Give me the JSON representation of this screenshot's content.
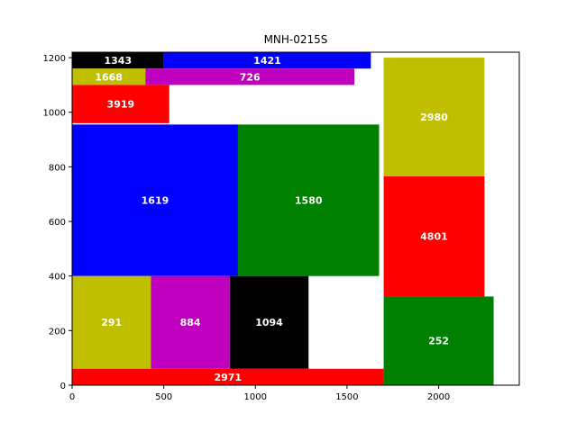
{
  "chart_data": {
    "type": "treemap",
    "title": "MNH-0215S",
    "xlim": [
      0,
      2440
    ],
    "ylim": [
      0,
      1220
    ],
    "xticks": [
      0,
      500,
      1000,
      1500,
      2000
    ],
    "yticks": [
      0,
      200,
      400,
      600,
      800,
      1000,
      1200
    ],
    "grid": false,
    "rectangles": [
      {
        "label": "1343",
        "x0": 0,
        "y0": 1160,
        "x1": 500,
        "y1": 1220,
        "color": "#000000"
      },
      {
        "label": "1421",
        "x0": 500,
        "y0": 1160,
        "x1": 1630,
        "y1": 1220,
        "color": "#0000ff"
      },
      {
        "label": "1668",
        "x0": 0,
        "y0": 1100,
        "x1": 400,
        "y1": 1160,
        "color": "#bfbf00"
      },
      {
        "label": "726",
        "x0": 400,
        "y0": 1100,
        "x1": 1540,
        "y1": 1160,
        "color": "#bf00bf"
      },
      {
        "label": "3919",
        "x0": 0,
        "y0": 960,
        "x1": 530,
        "y1": 1100,
        "color": "#ff0000"
      },
      {
        "label": "1619",
        "x0": 0,
        "y0": 400,
        "x1": 905,
        "y1": 955,
        "color": "#0000ff"
      },
      {
        "label": "1580",
        "x0": 905,
        "y0": 400,
        "x1": 1675,
        "y1": 955,
        "color": "#008000"
      },
      {
        "label": "291",
        "x0": 0,
        "y0": 60,
        "x1": 430,
        "y1": 400,
        "color": "#bfbf00"
      },
      {
        "label": "884",
        "x0": 430,
        "y0": 60,
        "x1": 860,
        "y1": 400,
        "color": "#bf00bf"
      },
      {
        "label": "1094",
        "x0": 860,
        "y0": 60,
        "x1": 1290,
        "y1": 400,
        "color": "#000000"
      },
      {
        "label": "2971",
        "x0": 0,
        "y0": 0,
        "x1": 1700,
        "y1": 60,
        "color": "#ff0000"
      },
      {
        "label": "2980",
        "x0": 1700,
        "y0": 765,
        "x1": 2250,
        "y1": 1200,
        "color": "#bfbf00"
      },
      {
        "label": "4801",
        "x0": 1700,
        "y0": 325,
        "x1": 2250,
        "y1": 765,
        "color": "#ff0000"
      },
      {
        "label": "252",
        "x0": 1700,
        "y0": 0,
        "x1": 2300,
        "y1": 325,
        "color": "#008000"
      }
    ]
  }
}
